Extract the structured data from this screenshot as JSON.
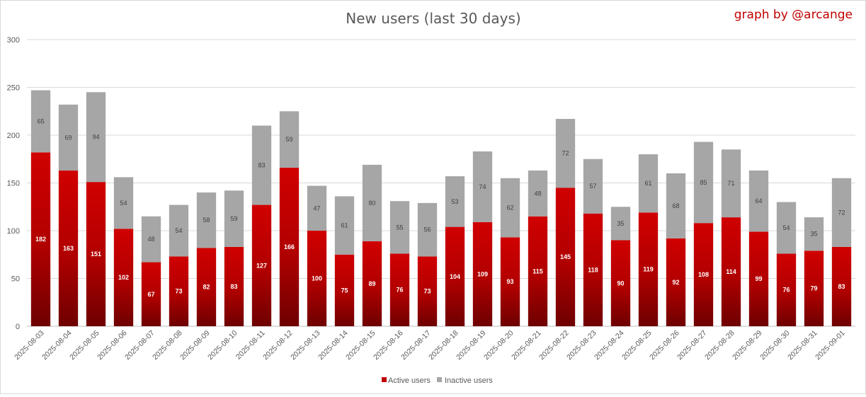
{
  "chart_data": {
    "type": "bar",
    "stacked": true,
    "title": "New users (last 30 days)",
    "credit": "graph by @arcange",
    "ylim": [
      0,
      300
    ],
    "yticks": [
      0,
      50,
      100,
      150,
      200,
      250,
      300
    ],
    "grid": true,
    "legend_position": "bottom",
    "categories": [
      "2025-08-03",
      "2025-08-04",
      "2025-08-05",
      "2025-08-06",
      "2025-08-07",
      "2025-08-08",
      "2025-08-09",
      "2025-08-10",
      "2025-08-11",
      "2025-08-12",
      "2025-08-13",
      "2025-08-14",
      "2025-08-15",
      "2025-08-16",
      "2025-08-17",
      "2025-08-18",
      "2025-08-19",
      "2025-08-20",
      "2025-08-21",
      "2025-08-22",
      "2025-08-23",
      "2025-08-24",
      "2025-08-25",
      "2025-08-26",
      "2025-08-27",
      "2025-08-28",
      "2025-08-29",
      "2025-08-30",
      "2025-08-31",
      "2025-09-01"
    ],
    "series": [
      {
        "name": "Active users",
        "color": "#c00000",
        "values": [
          182,
          163,
          151,
          102,
          67,
          73,
          82,
          83,
          127,
          166,
          100,
          75,
          89,
          76,
          73,
          104,
          109,
          93,
          115,
          145,
          118,
          90,
          119,
          92,
          108,
          114,
          99,
          76,
          79,
          83
        ]
      },
      {
        "name": "Inactive users",
        "color": "#a6a6a6",
        "values": [
          65,
          69,
          94,
          54,
          48,
          54,
          58,
          59,
          83,
          59,
          47,
          61,
          80,
          55,
          56,
          53,
          74,
          62,
          48,
          72,
          57,
          35,
          61,
          68,
          85,
          71,
          64,
          54,
          35,
          72
        ]
      }
    ]
  }
}
